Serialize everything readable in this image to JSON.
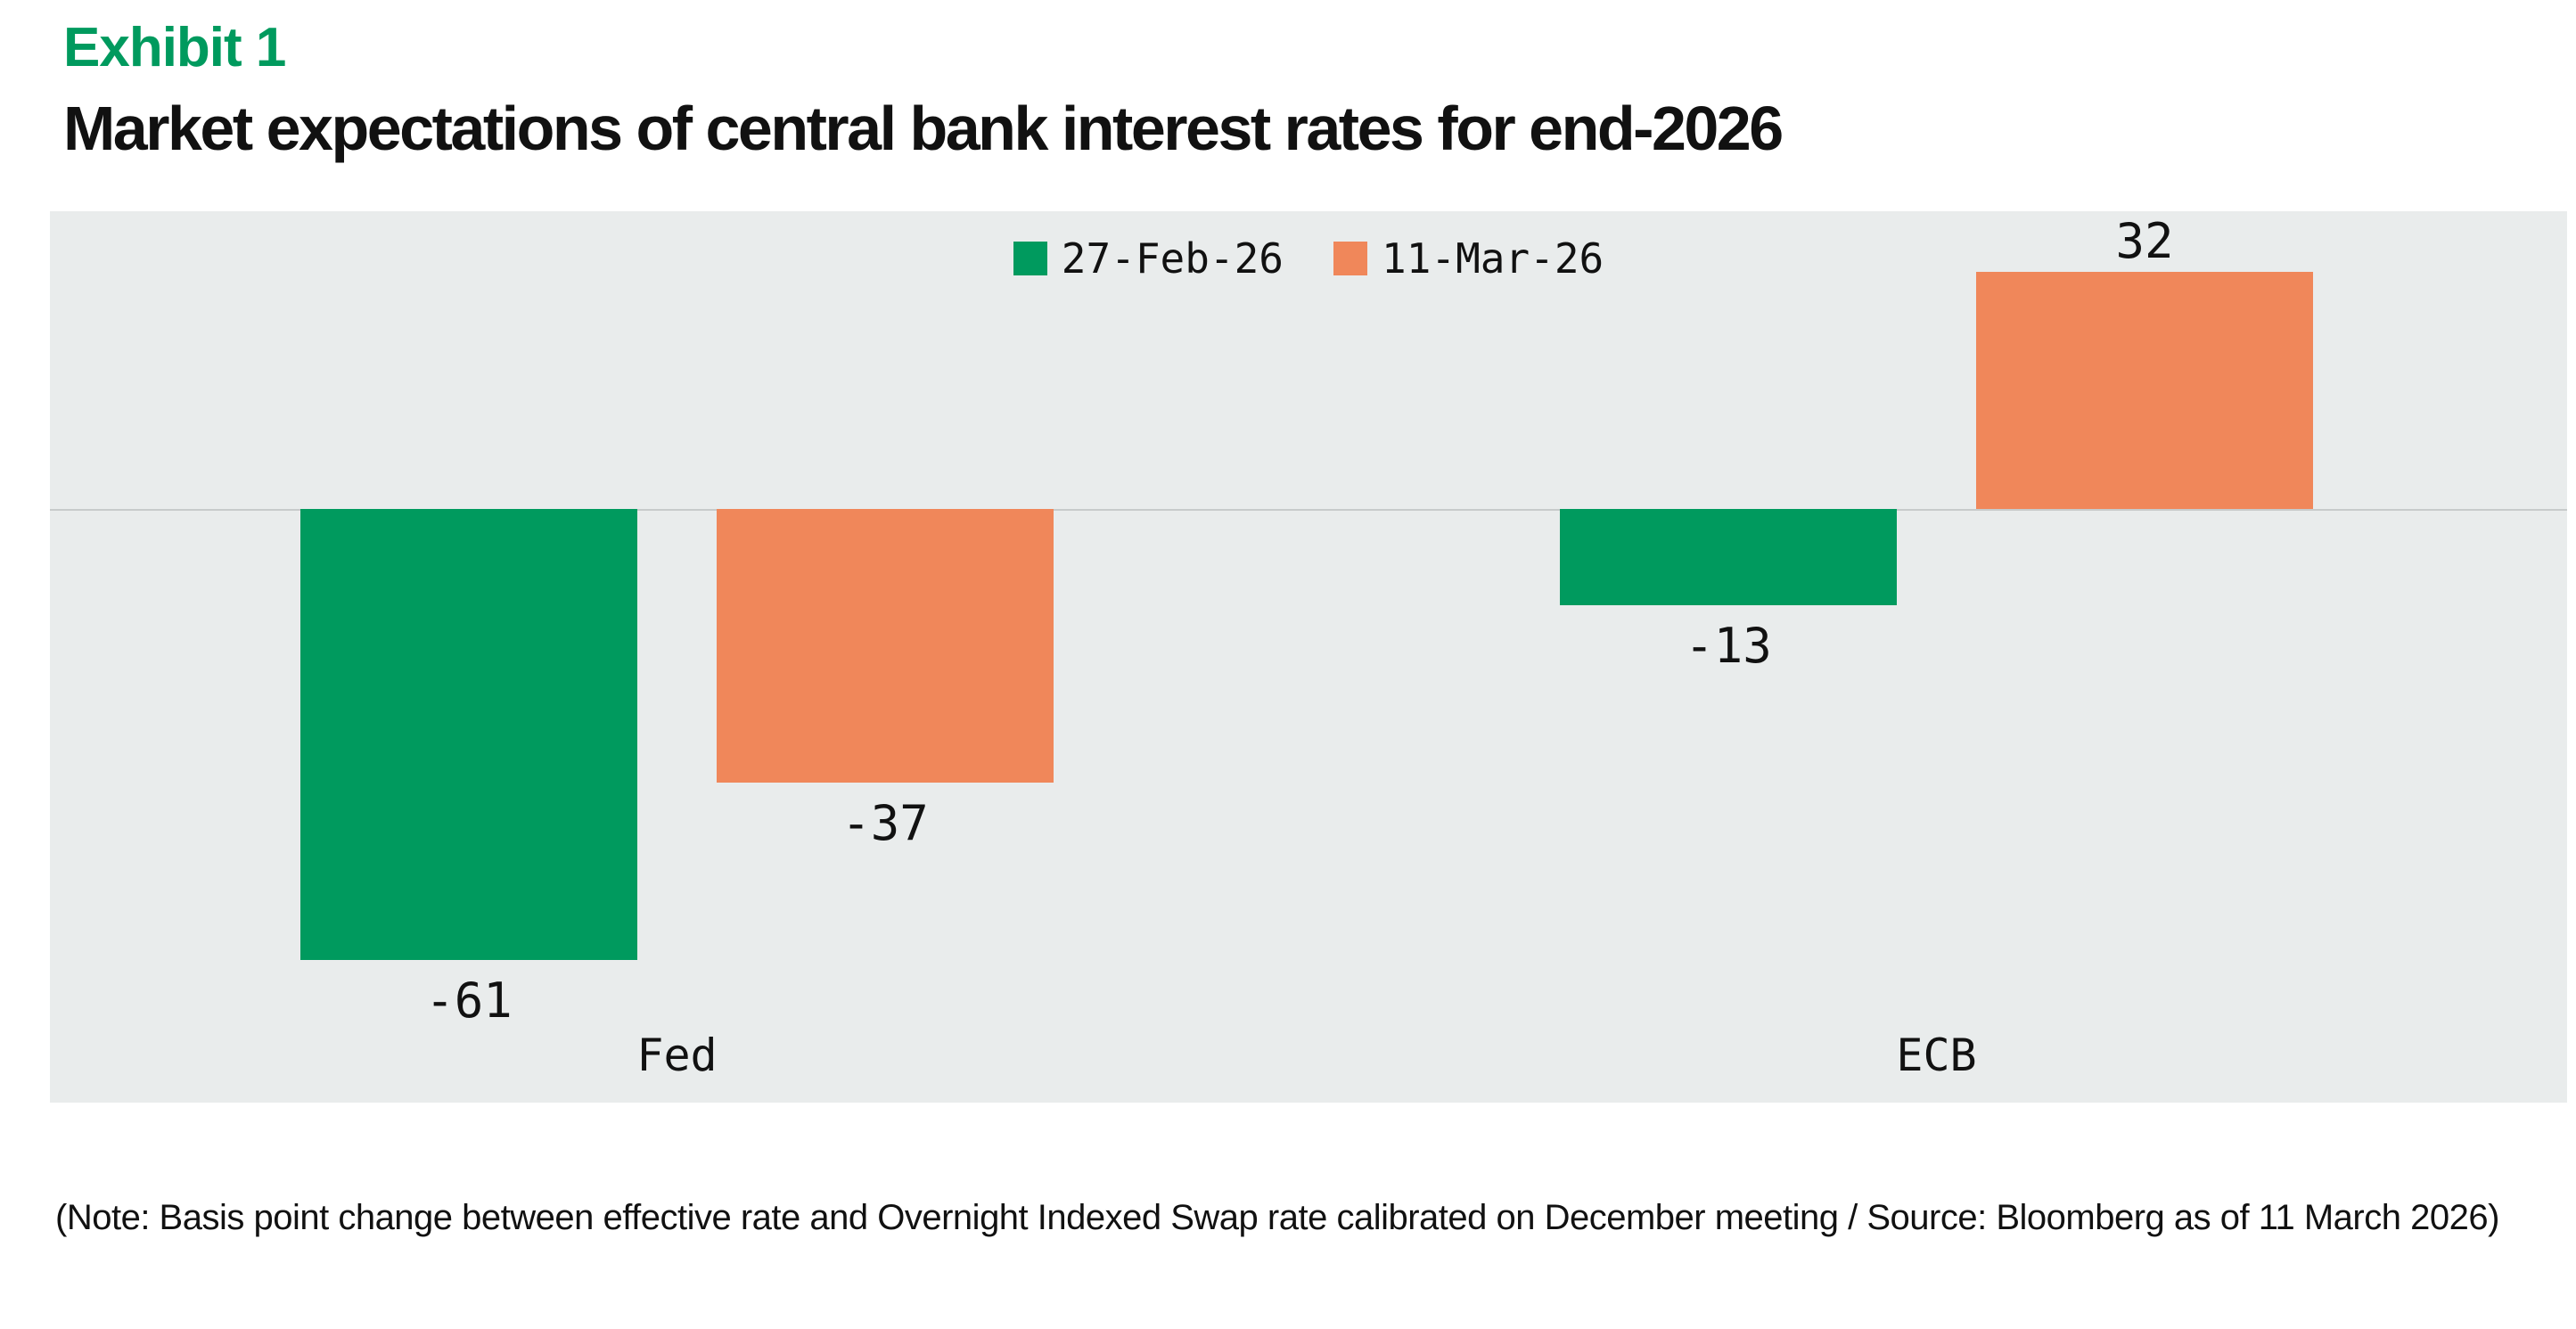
{
  "header": {
    "exhibit": "Exhibit 1",
    "title": "Market expectations of central bank interest rates for end-2026"
  },
  "chart_data": {
    "type": "bar",
    "categories": [
      "Fed",
      "ECB"
    ],
    "series": [
      {
        "name": "27-Feb-26",
        "color": "#009A5E",
        "values": [
          -61,
          -13
        ]
      },
      {
        "name": "11-Mar-26",
        "color": "#F0875A",
        "values": [
          -37,
          32
        ]
      }
    ],
    "baseline": 0,
    "grid": false,
    "legend_position": "top-center",
    "background_color": "#E9ECEC",
    "zero_line_color": "#C7CBCB",
    "ylim": [
      -70,
      40
    ]
  },
  "footer": {
    "note": "(Note: Basis point change between effective rate and Overnight Indexed Swap rate calibrated on December meeting / Source: Bloomberg as of 11 March 2026)"
  }
}
